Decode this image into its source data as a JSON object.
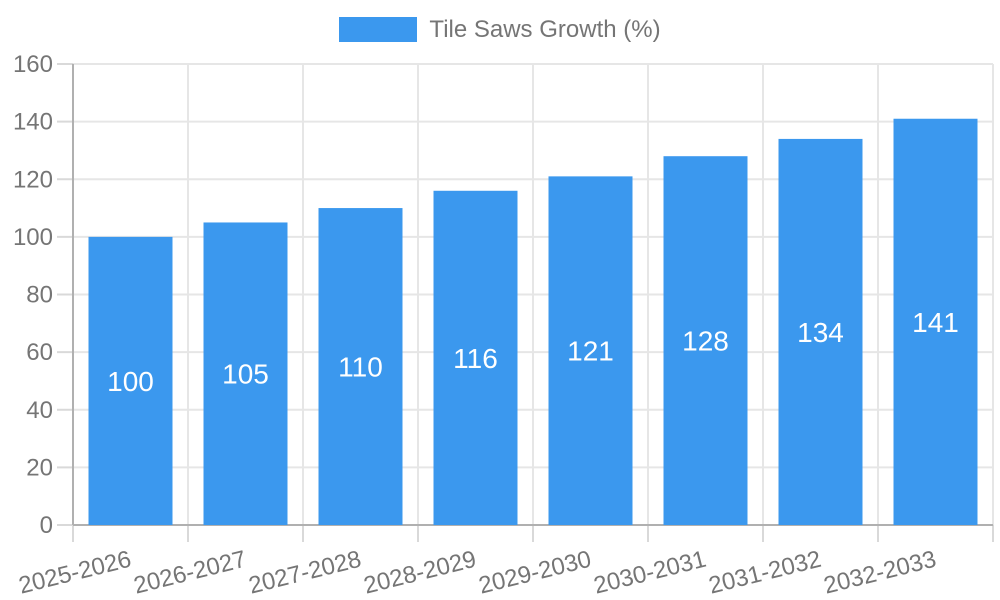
{
  "chart_data": {
    "type": "bar",
    "title": "Tile Saws Growth (%)",
    "legend_position": "top",
    "series": [
      {
        "name": "Tile Saws Growth (%)",
        "values": [
          100,
          105,
          110,
          116,
          121,
          128,
          134,
          141
        ]
      }
    ],
    "categories": [
      "2025-2026",
      "2026-2027",
      "2027-2028",
      "2028-2029",
      "2029-2030",
      "2030-2031",
      "2031-2032",
      "2032-2033"
    ],
    "values": [
      100,
      105,
      110,
      116,
      121,
      128,
      134,
      141
    ],
    "xlabel": "",
    "ylabel": "",
    "ylim": [
      0,
      160
    ],
    "yticks": [
      0,
      20,
      40,
      60,
      80,
      100,
      120,
      140,
      160
    ],
    "grid": true,
    "bar_color": "#3b98ee",
    "text_color": "#757575",
    "grid_color": "#e6e6e6",
    "axis_color": "#b0b0b0",
    "tick_color": "#d9d9d9",
    "value_label_color": "#ffffff"
  }
}
